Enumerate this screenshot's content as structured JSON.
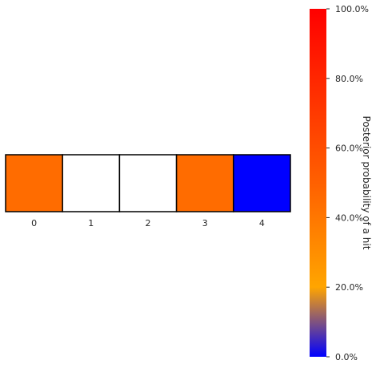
{
  "chart_data": {
    "type": "heatmap",
    "title": "",
    "xlabel": "",
    "ylabel": "",
    "categories": [
      "0",
      "1",
      "2",
      "3",
      "4"
    ],
    "cells": [
      {
        "category": "0",
        "state": "hit",
        "probability": 0.45
      },
      {
        "category": "1",
        "state": "empty"
      },
      {
        "category": "2",
        "state": "empty"
      },
      {
        "category": "3",
        "state": "hit",
        "probability": 0.45
      },
      {
        "category": "4",
        "state": "hit",
        "probability": 0.0
      }
    ],
    "colorbar": {
      "label": "Posterior probability of a hit",
      "range": [
        0,
        1
      ],
      "ticks": [
        0,
        0.2,
        0.4,
        0.6,
        0.8,
        1.0
      ],
      "tick_labels": [
        "0.0%",
        "20.0%",
        "40.0%",
        "60.0%",
        "80.0%",
        "100.0%"
      ],
      "colors": [
        {
          "pos": 0.0,
          "color": "#0000ff"
        },
        {
          "pos": 0.2,
          "color": "#ffa500"
        },
        {
          "pos": 0.5,
          "color": "#ff6000"
        },
        {
          "pos": 1.0,
          "color": "#ff0000"
        }
      ]
    },
    "empty_cell_color": "#ffffff",
    "grid": false
  }
}
